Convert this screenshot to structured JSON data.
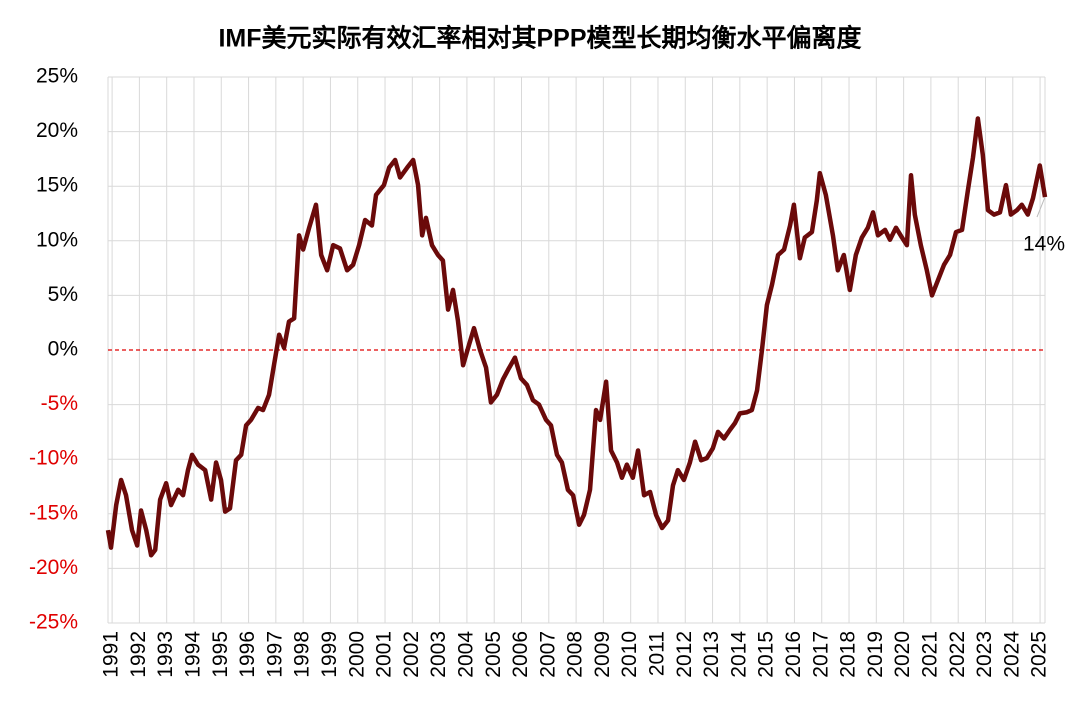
{
  "chart_data": {
    "type": "line",
    "title": "IMF美元实际有效汇率相对其PPP模型长期均衡水平偏离度",
    "annotation": "14%",
    "xlim": [
      1990.85,
      2025.18
    ],
    "xticks": [
      1991,
      1992,
      1993,
      1994,
      1995,
      1996,
      1997,
      1998,
      1999,
      2000,
      2001,
      2002,
      2003,
      2004,
      2005,
      2006,
      2007,
      2008,
      2009,
      2010,
      2011,
      2012,
      2013,
      2014,
      2015,
      2016,
      2017,
      2018,
      2019,
      2020,
      2021,
      2022,
      2023,
      2024,
      2025
    ],
    "ylim": [
      -25,
      25
    ],
    "yticks": [
      {
        "value": -25,
        "label": "-25%"
      },
      {
        "value": -20,
        "label": "-20%"
      },
      {
        "value": -15,
        "label": "-15%"
      },
      {
        "value": -10,
        "label": "-10%"
      },
      {
        "value": -5,
        "label": "-5%"
      },
      {
        "value": 0,
        "label": "0%"
      },
      {
        "value": 5,
        "label": "5%"
      },
      {
        "value": 10,
        "label": "10%"
      },
      {
        "value": 15,
        "label": "15%"
      },
      {
        "value": 20,
        "label": "20%"
      },
      {
        "value": 25,
        "label": "25%"
      }
    ],
    "grid": true,
    "negative_tick_color": "#e00000",
    "zero_line_color": "#e00000",
    "series": [
      {
        "color": "#6b0a0a",
        "x": [
          1990.85,
          1990.96,
          1991.15,
          1991.33,
          1991.51,
          1991.73,
          1991.92,
          1992.06,
          1992.25,
          1992.43,
          1992.58,
          1992.76,
          1992.98,
          1993.16,
          1993.42,
          1993.6,
          1993.78,
          1993.93,
          1994.15,
          1994.41,
          1994.63,
          1994.81,
          1994.99,
          1995.14,
          1995.32,
          1995.54,
          1995.73,
          1995.91,
          1996.09,
          1996.35,
          1996.53,
          1996.75,
          1996.93,
          1997.12,
          1997.3,
          1997.48,
          1997.67,
          1997.85,
          1998.0,
          1998.22,
          1998.47,
          1998.66,
          1998.88,
          1999.1,
          1999.35,
          1999.61,
          1999.83,
          2000.05,
          2000.27,
          2000.52,
          2000.67,
          2000.96,
          2001.15,
          2001.37,
          2001.55,
          2001.81,
          2002.03,
          2002.21,
          2002.36,
          2002.5,
          2002.72,
          2002.94,
          2003.12,
          2003.31,
          2003.49,
          2003.67,
          2003.86,
          2004.08,
          2004.26,
          2004.48,
          2004.7,
          2004.88,
          2005.1,
          2005.32,
          2005.51,
          2005.76,
          2005.98,
          2006.2,
          2006.42,
          2006.64,
          2006.9,
          2007.08,
          2007.3,
          2007.48,
          2007.7,
          2007.89,
          2008.11,
          2008.29,
          2008.51,
          2008.73,
          2008.88,
          2009.1,
          2009.28,
          2009.5,
          2009.68,
          2009.86,
          2010.08,
          2010.27,
          2010.49,
          2010.71,
          2010.93,
          2011.15,
          2011.37,
          2011.55,
          2011.73,
          2011.95,
          2012.17,
          2012.36,
          2012.58,
          2012.79,
          2013.01,
          2013.2,
          2013.42,
          2013.64,
          2013.82,
          2014.0,
          2014.26,
          2014.44,
          2014.63,
          2014.81,
          2014.99,
          2015.18,
          2015.4,
          2015.62,
          2015.84,
          2015.98,
          2016.2,
          2016.38,
          2016.64,
          2016.82,
          2016.93,
          2017.15,
          2017.41,
          2017.59,
          2017.81,
          2018.03,
          2018.25,
          2018.47,
          2018.69,
          2018.88,
          2019.06,
          2019.32,
          2019.5,
          2019.72,
          2019.94,
          2020.12,
          2020.27,
          2020.41,
          2020.63,
          2020.85,
          2021.04,
          2021.26,
          2021.48,
          2021.7,
          2021.92,
          2022.14,
          2022.36,
          2022.54,
          2022.72,
          2022.9,
          2023.09,
          2023.31,
          2023.53,
          2023.75,
          2023.93,
          2024.15,
          2024.33,
          2024.55,
          2024.74,
          2024.99,
          2025.18
        ],
        "values": [
          -16.5,
          -18.1,
          -14.2,
          -11.9,
          -13.3,
          -16.5,
          -17.9,
          -14.7,
          -16.5,
          -18.8,
          -18.3,
          -13.7,
          -12.2,
          -14.2,
          -12.8,
          -13.3,
          -11.0,
          -9.6,
          -10.5,
          -11.0,
          -13.7,
          -10.3,
          -11.9,
          -14.8,
          -14.5,
          -10.1,
          -9.6,
          -6.9,
          -6.4,
          -5.3,
          -5.5,
          -4.1,
          -1.4,
          1.4,
          0.2,
          2.6,
          2.9,
          10.5,
          9.2,
          11.2,
          13.3,
          8.7,
          7.3,
          9.6,
          9.3,
          7.3,
          7.8,
          9.6,
          11.9,
          11.4,
          14.2,
          15.1,
          16.7,
          17.4,
          15.8,
          16.7,
          17.4,
          15.1,
          10.5,
          12.1,
          9.6,
          8.7,
          8.2,
          3.7,
          5.5,
          2.7,
          -1.4,
          0.5,
          2.0,
          0,
          -1.6,
          -4.8,
          -4.1,
          -2.7,
          -1.8,
          -0.7,
          -2.6,
          -3.2,
          -4.6,
          -5.0,
          -6.4,
          -6.9,
          -9.6,
          -10.3,
          -12.8,
          -13.3,
          -16.0,
          -15.1,
          -12.8,
          -5.5,
          -6.4,
          -2.9,
          -9.2,
          -10.3,
          -11.7,
          -10.5,
          -11.7,
          -9.2,
          -13.3,
          -13.0,
          -15.1,
          -16.3,
          -15.6,
          -12.4,
          -11.0,
          -11.9,
          -10.3,
          -8.4,
          -10.1,
          -9.9,
          -9.0,
          -7.5,
          -8.1,
          -7.3,
          -6.7,
          -5.8,
          -5.7,
          -5.5,
          -3.7,
          0,
          4.1,
          6.0,
          8.7,
          9.2,
          11.4,
          13.3,
          8.4,
          10.3,
          10.8,
          13.7,
          16.2,
          14.2,
          10.5,
          7.3,
          8.7,
          5.5,
          8.7,
          10.3,
          11.2,
          12.6,
          10.5,
          11.0,
          10.1,
          11.2,
          10.3,
          9.6,
          16.0,
          12.4,
          9.6,
          7.3,
          5.0,
          6.4,
          7.8,
          8.7,
          10.8,
          11.0,
          14.7,
          17.6,
          21.2,
          17.9,
          12.8,
          12.4,
          12.6,
          15.1,
          12.4,
          12.8,
          13.3,
          12.4,
          13.9,
          16.9,
          14.0
        ]
      }
    ]
  }
}
